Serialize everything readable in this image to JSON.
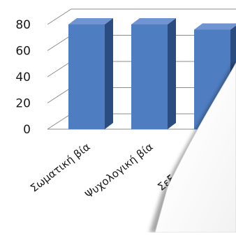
{
  "chart_data": {
    "type": "bar",
    "categories": [
      "Σωματική βία",
      "Ψυχολογική βία",
      "Σεξουαλική βία"
    ],
    "category_labels_visible": [
      "Σωματική βία",
      "Ψυχολογική βία",
      "Σεξουαλική β"
    ],
    "values": [
      80,
      80,
      76
    ],
    "yticks": [
      "0",
      "20",
      "40",
      "60",
      "80"
    ],
    "ylim": [
      0,
      80
    ],
    "grid": true,
    "style": "3d-column",
    "colors": {
      "bar_front": "#4F7DC1",
      "bar_side": "#2A4C80",
      "bar_top": "#6F94D1",
      "grid": "#8c8c8c",
      "page_curl": "#f4f4f4"
    }
  }
}
